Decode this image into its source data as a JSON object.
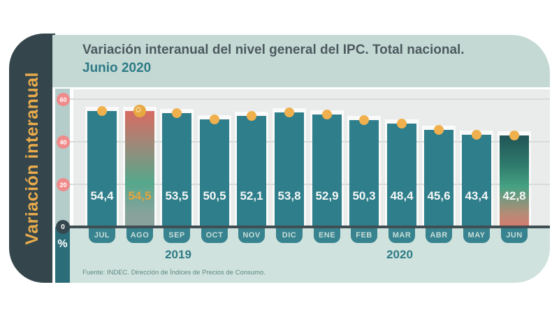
{
  "sidebar": {
    "label": "Variación interanual"
  },
  "header": {
    "title_line1": "Variación interanual del nivel general del IPC. Total nacional.",
    "title_line2": "Junio 2020"
  },
  "axis": {
    "unit": "%",
    "ticks": [
      60,
      40,
      20,
      0
    ]
  },
  "chart_data": {
    "type": "bar",
    "title": "Variación interanual del nivel general del IPC. Total nacional. Junio 2020",
    "xlabel": "",
    "ylabel": "%",
    "ylim": [
      0,
      65
    ],
    "yticks": [
      0,
      20,
      40,
      60
    ],
    "grid": true,
    "categories": [
      "JUL",
      "AGO",
      "SEP",
      "OCT",
      "NOV",
      "DIC",
      "ENE",
      "FEB",
      "MAR",
      "ABR",
      "MAY",
      "JUN"
    ],
    "values": [
      54.4,
      54.5,
      53.5,
      50.5,
      52.1,
      53.8,
      52.9,
      50.3,
      48.4,
      45.6,
      43.4,
      42.8
    ],
    "display_values": [
      "54,4",
      "54,5",
      "53,5",
      "50,5",
      "52,1",
      "53,8",
      "52,9",
      "50,3",
      "48,4",
      "45,6",
      "43,4",
      "42,8"
    ],
    "year_groups": [
      {
        "label": "2019",
        "months": [
          "JUL",
          "AGO",
          "SEP",
          "OCT",
          "NOV",
          "DIC"
        ]
      },
      {
        "label": "2020",
        "months": [
          "ENE",
          "FEB",
          "MAR",
          "ABR",
          "MAY",
          "JUN"
        ]
      }
    ],
    "highlight_peak": "AGO",
    "highlight_latest": "JUN"
  },
  "footer": {
    "source": "Fuente: INDEC. Dirección de Índices de Precios de Consumo."
  },
  "colors": {
    "bar": "#2f7e8b",
    "dot": "#f0b04d",
    "peak_dot": "#e7a83f",
    "peak_value_text": "#e3a43c",
    "peak_bar_gradient": [
      "#d96b62 0%",
      "#9b8a79 30%",
      "#55a78c 62%",
      "#86a39b 88%",
      "#8ba39d 100%"
    ],
    "latest_bar_gradient": [
      "#215456 0%",
      "#2e7a6c 32%",
      "#46a183 56%",
      "#b08d77 84%",
      "#d97b6e 100%"
    ],
    "tick_circle": "#ef8b8b",
    "zero_circle": "#35474e",
    "month_pill": "#37838f",
    "sidebar_bg": "#34464c",
    "sidebar_text": "#e9ab4c",
    "header_bg": "#c5d9d4",
    "footer_bg": "#d0e2dd",
    "plot_bg": "#e9ecea",
    "gridline": "#d7dcda",
    "axis_line": "#404f54",
    "title_text": "#4c5a60",
    "accent_teal": "#2e7b87"
  }
}
